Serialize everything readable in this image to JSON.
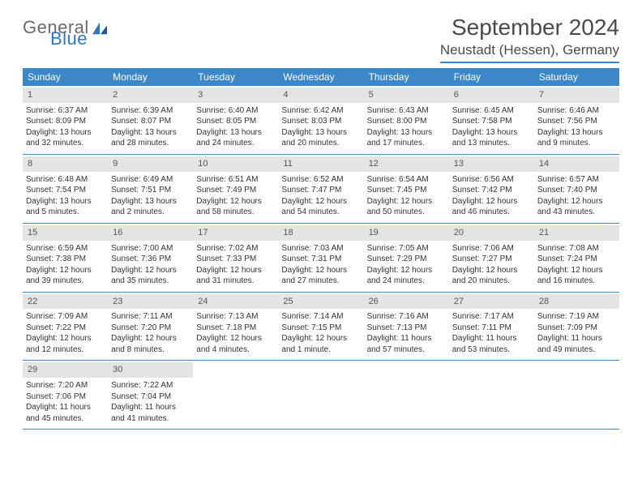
{
  "logo": {
    "text1": "General",
    "text2": "Blue"
  },
  "title": "September 2024",
  "location": "Neustadt (Hessen), Germany",
  "colors": {
    "header_bar": "#3b87c8",
    "daynum_bg": "#e4e4e4",
    "text": "#333333",
    "logo_gray": "#6a6a6a",
    "logo_blue": "#2a78c2",
    "row_border": "#3b87c8"
  },
  "weekdays": [
    "Sunday",
    "Monday",
    "Tuesday",
    "Wednesday",
    "Thursday",
    "Friday",
    "Saturday"
  ],
  "weeks": [
    [
      {
        "n": "1",
        "sr": "6:37 AM",
        "ss": "8:09 PM",
        "dl": "13 hours and 32 minutes."
      },
      {
        "n": "2",
        "sr": "6:39 AM",
        "ss": "8:07 PM",
        "dl": "13 hours and 28 minutes."
      },
      {
        "n": "3",
        "sr": "6:40 AM",
        "ss": "8:05 PM",
        "dl": "13 hours and 24 minutes."
      },
      {
        "n": "4",
        "sr": "6:42 AM",
        "ss": "8:03 PM",
        "dl": "13 hours and 20 minutes."
      },
      {
        "n": "5",
        "sr": "6:43 AM",
        "ss": "8:00 PM",
        "dl": "13 hours and 17 minutes."
      },
      {
        "n": "6",
        "sr": "6:45 AM",
        "ss": "7:58 PM",
        "dl": "13 hours and 13 minutes."
      },
      {
        "n": "7",
        "sr": "6:46 AM",
        "ss": "7:56 PM",
        "dl": "13 hours and 9 minutes."
      }
    ],
    [
      {
        "n": "8",
        "sr": "6:48 AM",
        "ss": "7:54 PM",
        "dl": "13 hours and 5 minutes."
      },
      {
        "n": "9",
        "sr": "6:49 AM",
        "ss": "7:51 PM",
        "dl": "13 hours and 2 minutes."
      },
      {
        "n": "10",
        "sr": "6:51 AM",
        "ss": "7:49 PM",
        "dl": "12 hours and 58 minutes."
      },
      {
        "n": "11",
        "sr": "6:52 AM",
        "ss": "7:47 PM",
        "dl": "12 hours and 54 minutes."
      },
      {
        "n": "12",
        "sr": "6:54 AM",
        "ss": "7:45 PM",
        "dl": "12 hours and 50 minutes."
      },
      {
        "n": "13",
        "sr": "6:56 AM",
        "ss": "7:42 PM",
        "dl": "12 hours and 46 minutes."
      },
      {
        "n": "14",
        "sr": "6:57 AM",
        "ss": "7:40 PM",
        "dl": "12 hours and 43 minutes."
      }
    ],
    [
      {
        "n": "15",
        "sr": "6:59 AM",
        "ss": "7:38 PM",
        "dl": "12 hours and 39 minutes."
      },
      {
        "n": "16",
        "sr": "7:00 AM",
        "ss": "7:36 PM",
        "dl": "12 hours and 35 minutes."
      },
      {
        "n": "17",
        "sr": "7:02 AM",
        "ss": "7:33 PM",
        "dl": "12 hours and 31 minutes."
      },
      {
        "n": "18",
        "sr": "7:03 AM",
        "ss": "7:31 PM",
        "dl": "12 hours and 27 minutes."
      },
      {
        "n": "19",
        "sr": "7:05 AM",
        "ss": "7:29 PM",
        "dl": "12 hours and 24 minutes."
      },
      {
        "n": "20",
        "sr": "7:06 AM",
        "ss": "7:27 PM",
        "dl": "12 hours and 20 minutes."
      },
      {
        "n": "21",
        "sr": "7:08 AM",
        "ss": "7:24 PM",
        "dl": "12 hours and 16 minutes."
      }
    ],
    [
      {
        "n": "22",
        "sr": "7:09 AM",
        "ss": "7:22 PM",
        "dl": "12 hours and 12 minutes."
      },
      {
        "n": "23",
        "sr": "7:11 AM",
        "ss": "7:20 PM",
        "dl": "12 hours and 8 minutes."
      },
      {
        "n": "24",
        "sr": "7:13 AM",
        "ss": "7:18 PM",
        "dl": "12 hours and 4 minutes."
      },
      {
        "n": "25",
        "sr": "7:14 AM",
        "ss": "7:15 PM",
        "dl": "12 hours and 1 minute."
      },
      {
        "n": "26",
        "sr": "7:16 AM",
        "ss": "7:13 PM",
        "dl": "11 hours and 57 minutes."
      },
      {
        "n": "27",
        "sr": "7:17 AM",
        "ss": "7:11 PM",
        "dl": "11 hours and 53 minutes."
      },
      {
        "n": "28",
        "sr": "7:19 AM",
        "ss": "7:09 PM",
        "dl": "11 hours and 49 minutes."
      }
    ],
    [
      {
        "n": "29",
        "sr": "7:20 AM",
        "ss": "7:06 PM",
        "dl": "11 hours and 45 minutes."
      },
      {
        "n": "30",
        "sr": "7:22 AM",
        "ss": "7:04 PM",
        "dl": "11 hours and 41 minutes."
      },
      null,
      null,
      null,
      null,
      null
    ]
  ],
  "labels": {
    "sunrise": "Sunrise:",
    "sunset": "Sunset:",
    "daylight": "Daylight:"
  }
}
